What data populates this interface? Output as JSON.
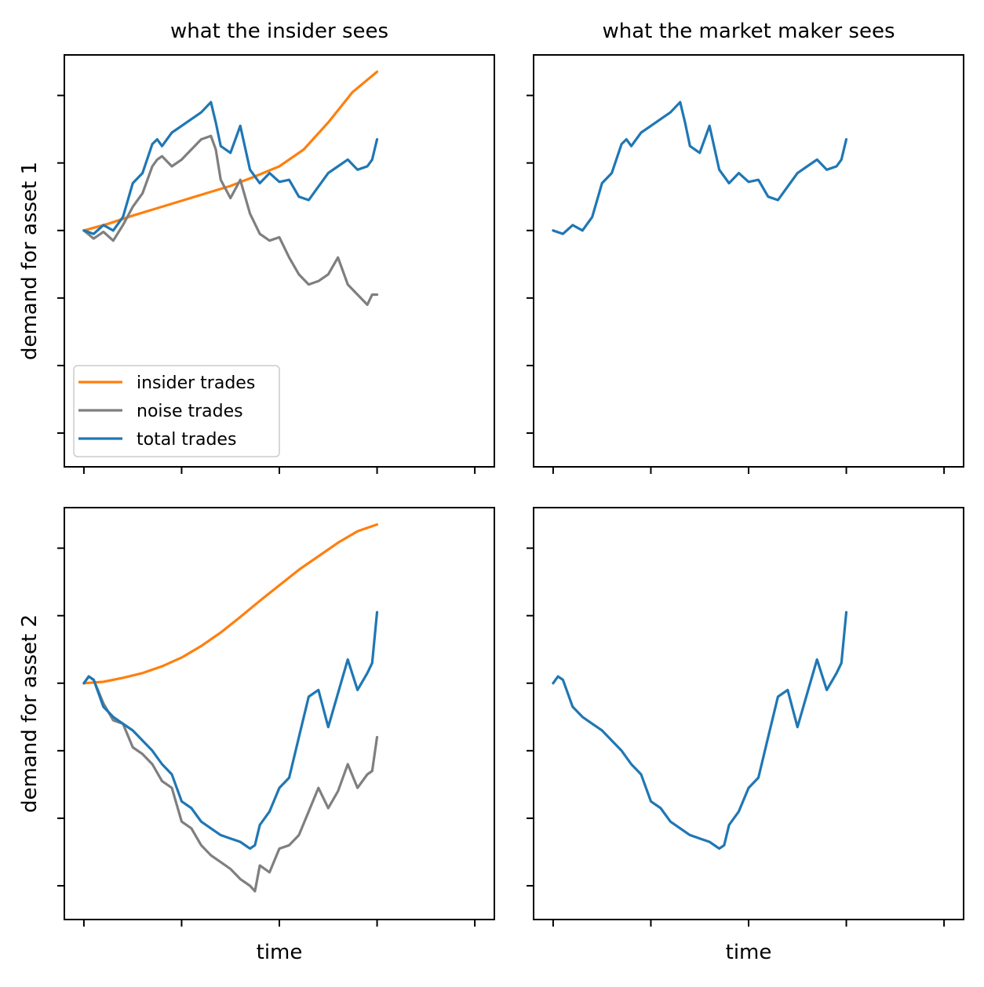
{
  "colors": {
    "insider": "#ff7f0e",
    "noise": "#7f7f7f",
    "total": "#1f77b4"
  },
  "legend": {
    "placement": "lower-left",
    "items": [
      {
        "label": "insider trades",
        "color": "#ff7f0e"
      },
      {
        "label": "noise trades",
        "color": "#7f7f7f"
      },
      {
        "label": "total trades",
        "color": "#1f77b4"
      }
    ]
  },
  "chart_data": [
    {
      "type": "line",
      "title": "what the insider sees",
      "xlabel": "",
      "ylabel": "demand for asset 1",
      "xlim": [
        -0.2,
        4.2
      ],
      "ylim": [
        -3.5,
        2.6
      ],
      "xticks": [
        0,
        1,
        2,
        3,
        4
      ],
      "yticks": [
        -3,
        -2,
        -1,
        0,
        1,
        2
      ],
      "tick_labels_visible": false,
      "series": [
        {
          "name": "insider trades",
          "color": "#ff7f0e",
          "x": [
            0,
            0.25,
            0.5,
            0.75,
            1.0,
            1.25,
            1.5,
            1.75,
            2.0,
            2.25,
            2.5,
            2.75,
            3.0
          ],
          "y": [
            0,
            0.1,
            0.22,
            0.33,
            0.44,
            0.55,
            0.66,
            0.8,
            0.95,
            1.2,
            1.6,
            2.05,
            2.35
          ]
        },
        {
          "name": "noise trades",
          "color": "#7f7f7f",
          "x": [
            0,
            0.1,
            0.2,
            0.3,
            0.4,
            0.5,
            0.6,
            0.7,
            0.75,
            0.8,
            0.9,
            1.0,
            1.1,
            1.2,
            1.3,
            1.35,
            1.4,
            1.5,
            1.6,
            1.7,
            1.8,
            1.9,
            2.0,
            2.1,
            2.2,
            2.3,
            2.4,
            2.5,
            2.6,
            2.7,
            2.8,
            2.9,
            2.95,
            3.0
          ],
          "y": [
            0,
            -0.12,
            -0.02,
            -0.15,
            0.08,
            0.35,
            0.55,
            0.95,
            1.05,
            1.1,
            0.95,
            1.05,
            1.2,
            1.35,
            1.4,
            1.2,
            0.75,
            0.48,
            0.75,
            0.25,
            -0.05,
            -0.15,
            -0.1,
            -0.4,
            -0.65,
            -0.8,
            -0.75,
            -0.65,
            -0.4,
            -0.8,
            -0.95,
            -1.1,
            -0.95,
            -0.95
          ]
        },
        {
          "name": "total trades",
          "color": "#1f77b4",
          "x": [
            0,
            0.1,
            0.2,
            0.3,
            0.4,
            0.5,
            0.6,
            0.7,
            0.75,
            0.8,
            0.9,
            1.0,
            1.1,
            1.2,
            1.3,
            1.35,
            1.4,
            1.5,
            1.6,
            1.7,
            1.8,
            1.9,
            2.0,
            2.1,
            2.2,
            2.3,
            2.4,
            2.5,
            2.6,
            2.7,
            2.8,
            2.9,
            2.95,
            3.0
          ],
          "y": [
            0,
            -0.05,
            0.08,
            0.0,
            0.2,
            0.7,
            0.85,
            1.28,
            1.35,
            1.25,
            1.45,
            1.55,
            1.65,
            1.75,
            1.9,
            1.6,
            1.25,
            1.15,
            1.55,
            0.9,
            0.7,
            0.85,
            0.72,
            0.75,
            0.5,
            0.45,
            0.65,
            0.85,
            0.95,
            1.05,
            0.9,
            0.95,
            1.05,
            1.35
          ]
        }
      ]
    },
    {
      "type": "line",
      "title": "what the market maker sees",
      "xlabel": "",
      "ylabel": "",
      "xlim": [
        -0.2,
        4.2
      ],
      "ylim": [
        -3.5,
        2.6
      ],
      "xticks": [
        0,
        1,
        2,
        3,
        4
      ],
      "yticks": [
        -3,
        -2,
        -1,
        0,
        1,
        2
      ],
      "tick_labels_visible": false,
      "series": [
        {
          "name": "total trades",
          "color": "#1f77b4",
          "x": [
            0,
            0.1,
            0.2,
            0.3,
            0.4,
            0.5,
            0.6,
            0.7,
            0.75,
            0.8,
            0.9,
            1.0,
            1.1,
            1.2,
            1.3,
            1.35,
            1.4,
            1.5,
            1.6,
            1.7,
            1.8,
            1.9,
            2.0,
            2.1,
            2.2,
            2.3,
            2.4,
            2.5,
            2.6,
            2.7,
            2.8,
            2.9,
            2.95,
            3.0
          ],
          "y": [
            0,
            -0.05,
            0.08,
            0.0,
            0.2,
            0.7,
            0.85,
            1.28,
            1.35,
            1.25,
            1.45,
            1.55,
            1.65,
            1.75,
            1.9,
            1.6,
            1.25,
            1.15,
            1.55,
            0.9,
            0.7,
            0.85,
            0.72,
            0.75,
            0.5,
            0.45,
            0.65,
            0.85,
            0.95,
            1.05,
            0.9,
            0.95,
            1.05,
            1.35
          ]
        }
      ]
    },
    {
      "type": "line",
      "title": "",
      "xlabel": "time",
      "ylabel": "demand for asset 2",
      "xlim": [
        -0.2,
        4.2
      ],
      "ylim": [
        -3.5,
        2.6
      ],
      "xticks": [
        0,
        1,
        2,
        3,
        4
      ],
      "yticks": [
        -3,
        -2,
        -1,
        0,
        1,
        2
      ],
      "tick_labels_visible": false,
      "series": [
        {
          "name": "insider trades",
          "color": "#ff7f0e",
          "x": [
            0,
            0.2,
            0.4,
            0.6,
            0.8,
            1.0,
            1.2,
            1.4,
            1.6,
            1.8,
            2.0,
            2.2,
            2.4,
            2.6,
            2.8,
            3.0
          ],
          "y": [
            0,
            0.02,
            0.08,
            0.15,
            0.25,
            0.38,
            0.55,
            0.75,
            0.98,
            1.22,
            1.45,
            1.68,
            1.88,
            2.08,
            2.25,
            2.35
          ]
        },
        {
          "name": "noise trades",
          "color": "#7f7f7f",
          "x": [
            0,
            0.05,
            0.1,
            0.2,
            0.3,
            0.4,
            0.5,
            0.6,
            0.7,
            0.8,
            0.9,
            1.0,
            1.1,
            1.2,
            1.3,
            1.4,
            1.5,
            1.6,
            1.7,
            1.75,
            1.8,
            1.9,
            2.0,
            2.1,
            2.2,
            2.3,
            2.4,
            2.5,
            2.6,
            2.7,
            2.8,
            2.9,
            2.95,
            3.0
          ],
          "y": [
            0,
            0.1,
            0.05,
            -0.3,
            -0.55,
            -0.6,
            -0.95,
            -1.05,
            -1.2,
            -1.45,
            -1.55,
            -2.05,
            -2.15,
            -2.4,
            -2.55,
            -2.65,
            -2.75,
            -2.9,
            -3.0,
            -3.08,
            -2.7,
            -2.8,
            -2.45,
            -2.4,
            -2.25,
            -1.9,
            -1.55,
            -1.85,
            -1.6,
            -1.2,
            -1.55,
            -1.35,
            -1.3,
            -0.8
          ]
        },
        {
          "name": "total trades",
          "color": "#1f77b4",
          "x": [
            0,
            0.05,
            0.1,
            0.2,
            0.3,
            0.4,
            0.5,
            0.6,
            0.7,
            0.8,
            0.9,
            1.0,
            1.1,
            1.2,
            1.3,
            1.4,
            1.5,
            1.6,
            1.7,
            1.75,
            1.8,
            1.9,
            2.0,
            2.1,
            2.2,
            2.3,
            2.4,
            2.5,
            2.6,
            2.7,
            2.8,
            2.9,
            2.95,
            3.0
          ],
          "y": [
            0,
            0.1,
            0.05,
            -0.35,
            -0.5,
            -0.6,
            -0.7,
            -0.85,
            -1.0,
            -1.2,
            -1.35,
            -1.75,
            -1.85,
            -2.05,
            -2.15,
            -2.25,
            -2.3,
            -2.35,
            -2.45,
            -2.4,
            -2.1,
            -1.9,
            -1.55,
            -1.4,
            -0.8,
            -0.2,
            -0.1,
            -0.65,
            -0.15,
            0.35,
            -0.1,
            0.15,
            0.3,
            1.05
          ]
        }
      ]
    },
    {
      "type": "line",
      "title": "",
      "xlabel": "time",
      "ylabel": "",
      "xlim": [
        -0.2,
        4.2
      ],
      "ylim": [
        -3.5,
        2.6
      ],
      "xticks": [
        0,
        1,
        2,
        3,
        4
      ],
      "yticks": [
        -3,
        -2,
        -1,
        0,
        1,
        2
      ],
      "tick_labels_visible": false,
      "series": [
        {
          "name": "total trades",
          "color": "#1f77b4",
          "x": [
            0,
            0.05,
            0.1,
            0.2,
            0.3,
            0.4,
            0.5,
            0.6,
            0.7,
            0.8,
            0.9,
            1.0,
            1.1,
            1.2,
            1.3,
            1.4,
            1.5,
            1.6,
            1.7,
            1.75,
            1.8,
            1.9,
            2.0,
            2.1,
            2.2,
            2.3,
            2.4,
            2.5,
            2.6,
            2.7,
            2.8,
            2.9,
            2.95,
            3.0
          ],
          "y": [
            0,
            0.1,
            0.05,
            -0.35,
            -0.5,
            -0.6,
            -0.7,
            -0.85,
            -1.0,
            -1.2,
            -1.35,
            -1.75,
            -1.85,
            -2.05,
            -2.15,
            -2.25,
            -2.3,
            -2.35,
            -2.45,
            -2.4,
            -2.1,
            -1.9,
            -1.55,
            -1.4,
            -0.8,
            -0.2,
            -0.1,
            -0.65,
            -0.15,
            0.35,
            -0.1,
            0.15,
            0.3,
            1.05
          ]
        }
      ]
    }
  ]
}
